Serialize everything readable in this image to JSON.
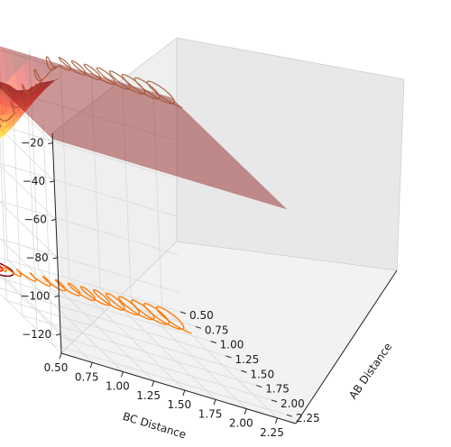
{
  "chart_data": {
    "type": "surface3d",
    "title": "",
    "xlabel": "BC Distance",
    "ylabel": "AB Distance",
    "zlabel": "",
    "x_ticks": [
      "0.50",
      "0.75",
      "1.00",
      "1.25",
      "1.50",
      "1.75",
      "2.00",
      "2.25"
    ],
    "y_ticks": [
      "0.50",
      "0.75",
      "1.00",
      "1.25",
      "1.50",
      "1.75",
      "2.00",
      "2.25"
    ],
    "z_ticks": [
      "−20",
      "−40",
      "−60",
      "−80",
      "−100",
      "−120"
    ],
    "x_range": [
      0.5,
      2.4
    ],
    "y_range": [
      0.5,
      2.4
    ],
    "z_range": [
      -130,
      -15
    ],
    "grid": true,
    "colormap": "jet",
    "contour_levels": [
      -110,
      -104,
      -98,
      -92,
      -86,
      -80,
      -74,
      -68,
      -62,
      -56
    ],
    "series": [
      {
        "kind": "surface",
        "colormap": "jet",
        "alpha": 0.45
      },
      {
        "kind": "contour-projection",
        "colormap": "jet"
      },
      {
        "kind": "trajectory",
        "color": "#a0522d"
      },
      {
        "kind": "trajectory-projection",
        "color": "#ff7f0e"
      }
    ]
  }
}
